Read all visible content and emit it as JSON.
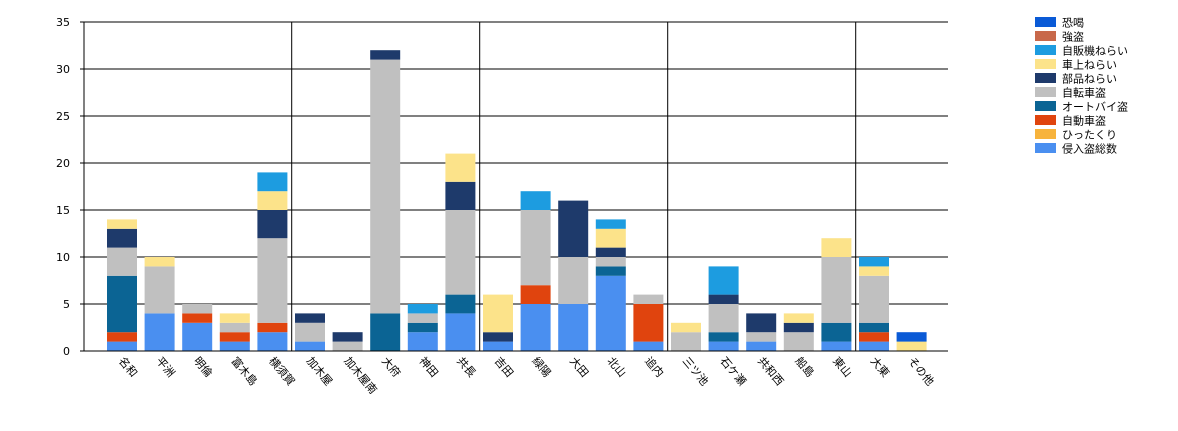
{
  "chart_data": {
    "type": "bar",
    "stacked": true,
    "ylim": [
      0,
      35
    ],
    "yticks": [
      0,
      5,
      10,
      15,
      20,
      25,
      30,
      35
    ],
    "grid": "horizontal lines at ticks; vertical lines at every 5th category",
    "legend_position": "top-right",
    "categories": [
      "名和",
      "平洲",
      "明倫",
      "富木島",
      "横須賀",
      "加木屋",
      "加木屋南",
      "大府",
      "神田",
      "共長",
      "吉田",
      "緑陽",
      "大田",
      "北山",
      "追内",
      "三ツ池",
      "石ケ瀬",
      "共和西",
      "船島",
      "東山",
      "大東",
      "その他"
    ],
    "series": [
      {
        "name": "恐喝",
        "color": "#0a5ad6",
        "values": [
          0,
          0,
          0,
          0,
          0,
          0,
          0,
          0,
          0,
          0,
          0,
          0,
          0,
          0,
          0,
          0,
          0,
          0,
          0,
          0,
          0,
          1
        ]
      },
      {
        "name": "強盗",
        "color": "#c8684a",
        "values": [
          0,
          0,
          0,
          0,
          0,
          0,
          0,
          0,
          0,
          0,
          0,
          0,
          0,
          0,
          0,
          0,
          0,
          0,
          0,
          0,
          0,
          0
        ]
      },
      {
        "name": "自販機ねらい",
        "color": "#1d9ce0",
        "values": [
          0,
          0,
          0,
          0,
          2,
          0,
          0,
          0,
          1,
          0,
          0,
          2,
          0,
          1,
          0,
          0,
          3,
          0,
          0,
          0,
          1,
          0
        ]
      },
      {
        "name": "車上ねらい",
        "color": "#fce38a",
        "values": [
          1,
          1,
          0,
          1,
          2,
          0,
          0,
          0,
          0,
          3,
          4,
          0,
          0,
          2,
          0,
          1,
          0,
          0,
          1,
          2,
          1,
          1
        ]
      },
      {
        "name": "部品ねらい",
        "color": "#1e3a6b",
        "values": [
          2,
          0,
          0,
          0,
          3,
          1,
          1,
          1,
          0,
          3,
          1,
          0,
          6,
          1,
          0,
          0,
          1,
          2,
          1,
          0,
          0,
          0
        ]
      },
      {
        "name": "自転車盗",
        "color": "#c0c0c0",
        "values": [
          3,
          5,
          1,
          1,
          9,
          2,
          1,
          27,
          1,
          9,
          0,
          8,
          5,
          1,
          1,
          2,
          3,
          1,
          2,
          7,
          5,
          0
        ]
      },
      {
        "name": "オートバイ盗",
        "color": "#0b6494",
        "values": [
          6,
          0,
          0,
          0,
          0,
          0,
          0,
          4,
          1,
          2,
          0,
          0,
          0,
          1,
          0,
          0,
          1,
          0,
          0,
          2,
          1,
          0
        ]
      },
      {
        "name": "自動車盗",
        "color": "#e0440e",
        "values": [
          1,
          0,
          1,
          1,
          1,
          0,
          0,
          0,
          0,
          0,
          0,
          2,
          0,
          0,
          4,
          0,
          0,
          0,
          0,
          0,
          1,
          0
        ]
      },
      {
        "name": "ひったくり",
        "color": "#f7b33c",
        "values": [
          0,
          0,
          0,
          0,
          0,
          0,
          0,
          0,
          0,
          0,
          0,
          0,
          0,
          0,
          0,
          0,
          0,
          0,
          0,
          0,
          0,
          0
        ]
      },
      {
        "name": "侵入盗総数",
        "color": "#4a8ff0",
        "values": [
          1,
          4,
          3,
          1,
          2,
          1,
          0,
          0,
          2,
          4,
          1,
          5,
          5,
          8,
          1,
          0,
          1,
          1,
          0,
          1,
          1,
          0
        ]
      }
    ]
  }
}
